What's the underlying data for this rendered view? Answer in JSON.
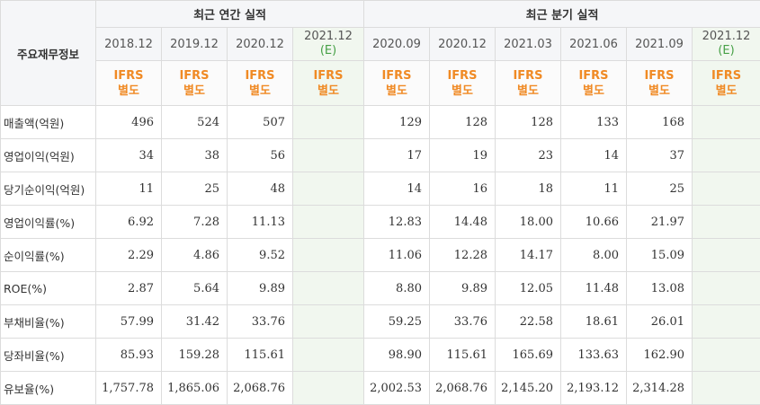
{
  "groups": {
    "annual": "최근 연간 실적",
    "quarterly": "최근 분기 실적"
  },
  "side_header": "주요재무정보",
  "annual_periods": [
    "2018.12",
    "2019.12",
    "2020.12"
  ],
  "annual_est": {
    "period": "2021.12",
    "est": "(E)"
  },
  "quarter_periods": [
    "2020.09",
    "2020.12",
    "2021.03",
    "2021.06",
    "2021.09"
  ],
  "quarter_est": {
    "period": "2021.12",
    "est": "(E)"
  },
  "ifrs": {
    "line1": "IFRS",
    "line2": "별도"
  },
  "rows": [
    {
      "label": "매출액(억원)",
      "annual": [
        "496",
        "524",
        "507"
      ],
      "quarterly": [
        "129",
        "128",
        "128",
        "133",
        "168"
      ]
    },
    {
      "label": "영업이익(억원)",
      "annual": [
        "34",
        "38",
        "56"
      ],
      "quarterly": [
        "17",
        "19",
        "23",
        "14",
        "37"
      ]
    },
    {
      "label": "당기순이익(억원)",
      "annual": [
        "11",
        "25",
        "48"
      ],
      "quarterly": [
        "14",
        "16",
        "18",
        "11",
        "25"
      ]
    },
    {
      "label": "영업이익률(%)",
      "annual": [
        "6.92",
        "7.28",
        "11.13"
      ],
      "quarterly": [
        "12.83",
        "14.48",
        "18.00",
        "10.66",
        "21.97"
      ]
    },
    {
      "label": "순이익률(%)",
      "annual": [
        "2.29",
        "4.86",
        "9.52"
      ],
      "quarterly": [
        "11.06",
        "12.28",
        "14.17",
        "8.00",
        "15.09"
      ]
    },
    {
      "label": "ROE(%)",
      "annual": [
        "2.87",
        "5.64",
        "9.89"
      ],
      "quarterly": [
        "8.80",
        "9.89",
        "12.05",
        "11.48",
        "13.08"
      ]
    },
    {
      "label": "부채비율(%)",
      "annual": [
        "57.99",
        "31.42",
        "33.76"
      ],
      "quarterly": [
        "59.25",
        "33.76",
        "22.58",
        "18.61",
        "26.01"
      ]
    },
    {
      "label": "당좌비율(%)",
      "annual": [
        "85.93",
        "159.28",
        "115.61"
      ],
      "quarterly": [
        "98.90",
        "115.61",
        "165.69",
        "133.63",
        "162.90"
      ]
    },
    {
      "label": "유보율(%)",
      "annual": [
        "1,757.78",
        "1,865.06",
        "2,068.76"
      ],
      "quarterly": [
        "2,002.53",
        "2,068.76",
        "2,145.20",
        "2,193.12",
        "2,314.28"
      ]
    }
  ]
}
